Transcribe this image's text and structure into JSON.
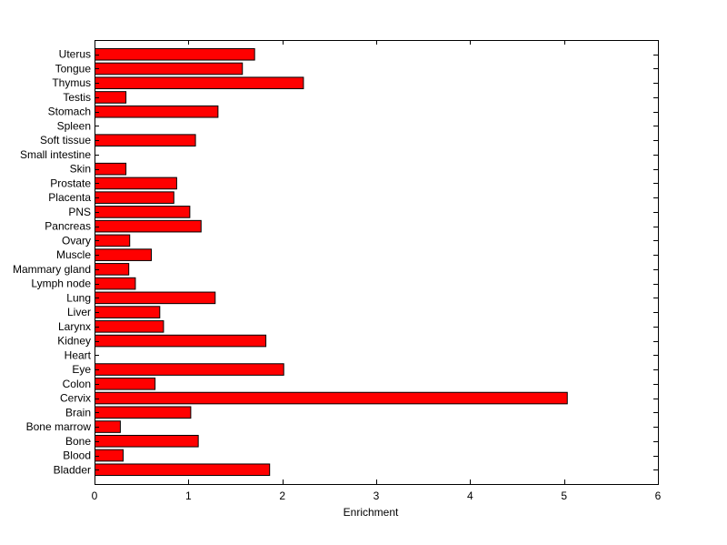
{
  "chart_data": {
    "type": "bar",
    "orientation": "horizontal",
    "categories": [
      "Bladder",
      "Blood",
      "Bone",
      "Bone marrow",
      "Brain",
      "Cervix",
      "Colon",
      "Eye",
      "Heart",
      "Kidney",
      "Larynx",
      "Liver",
      "Lung",
      "Lymph node",
      "Mammary gland",
      "Muscle",
      "Ovary",
      "Pancreas",
      "PNS",
      "Placenta",
      "Prostate",
      "Skin",
      "Small intestine",
      "Soft tissue",
      "Spleen",
      "Stomach",
      "Testis",
      "Thymus",
      "Tongue",
      "Uterus"
    ],
    "values": [
      1.86,
      0.3,
      1.1,
      0.27,
      1.02,
      5.03,
      0.64,
      2.01,
      0,
      1.82,
      0.73,
      0.69,
      1.28,
      0.43,
      0.36,
      0.6,
      0.37,
      1.13,
      1.01,
      0.84,
      0.87,
      0.33,
      0,
      1.07,
      0,
      1.31,
      0.33,
      2.22,
      1.57,
      1.7
    ],
    "xlabel": "Enrichment",
    "xlim": [
      0,
      6
    ],
    "xticks": [
      "0",
      "1",
      "2",
      "3",
      "4",
      "5",
      "6"
    ],
    "bar_color": "#ff0000",
    "bar_edge_color": "#000000",
    "grid": false,
    "legend": "none"
  }
}
